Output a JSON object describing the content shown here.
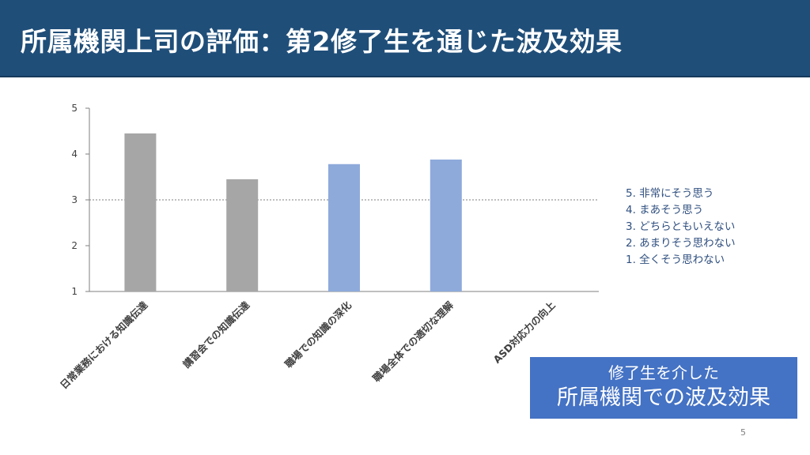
{
  "slide": {
    "title": "所属機関上司の評価：第2修了生を通じた波及効果",
    "page_number": "5"
  },
  "legend": {
    "items": [
      "5. 非常にそう思う",
      "4. まあそう思う",
      "3. どちらともいえない",
      "2. あまりそう思わない",
      "1. 全くそう思わない"
    ]
  },
  "callout": {
    "subtitle": "修了生を介した",
    "main": "所属機関での波及効果"
  },
  "chart_data": {
    "type": "bar",
    "categories": [
      "日常業務における知識伝達",
      "講習会での知識伝達",
      "職場での知識の深化",
      "職場全体での適切な理解",
      "ASD対応力の向上"
    ],
    "values": [
      4.45,
      3.45,
      3.78,
      3.88,
      null
    ],
    "bar_colors": [
      "#a6a6a6",
      "#a6a6a6",
      "#8eaadb",
      "#8eaadb",
      "#8eaadb"
    ],
    "ylim": [
      1,
      5
    ],
    "yticks": [
      1,
      2,
      3,
      4,
      5
    ],
    "reference_line": 3,
    "grid": false
  }
}
